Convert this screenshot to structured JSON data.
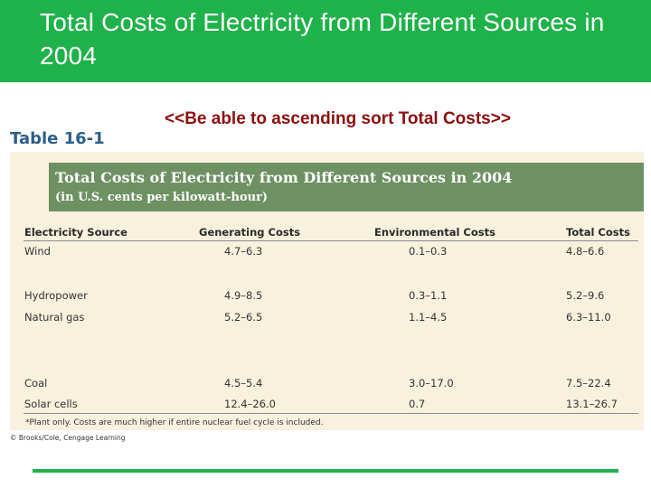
{
  "slide": {
    "title": "Total Costs of Electricity from Different Sources in 2004",
    "note": "<<Be able to ascending sort Total Costs>>"
  },
  "table": {
    "label": "Table 16-1",
    "title": "Total Costs of Electricity from Different Sources in 2004",
    "subtitle": "(in U.S. cents per kilowatt-hour)",
    "columns": [
      "Electricity Source",
      "Generating Costs",
      "Environmental Costs",
      "Total Costs"
    ],
    "rows": [
      {
        "source": "Wind",
        "generating": "4.7–6.3",
        "environmental": "0.1–0.3",
        "total": "4.8–6.6"
      },
      {
        "source": "Hydropower",
        "generating": "4.9–8.5",
        "environmental": "0.3–1.1",
        "total": "5.2–9.6"
      },
      {
        "source": "Natural gas",
        "generating": "5.2–6.5",
        "environmental": "1.1–4.5",
        "total": "6.3–11.0"
      },
      {
        "source": "Coal",
        "generating": "4.5–5.4",
        "environmental": "3.0–17.0",
        "total": "7.5–22.4"
      },
      {
        "source": "Solar cells",
        "generating": "12.4–26.0",
        "environmental": "0.7",
        "total": "13.1–26.7"
      }
    ],
    "footnote": "*Plant only. Costs are much higher if entire nuclear fuel cycle is included.",
    "copyright": "© Brooks/Cole, Cengage Learning"
  },
  "colors": {
    "header_green": "#1fb24a",
    "note_red": "#8b1010",
    "band_green": "#6e9164",
    "panel_cream": "#f8f1de"
  }
}
